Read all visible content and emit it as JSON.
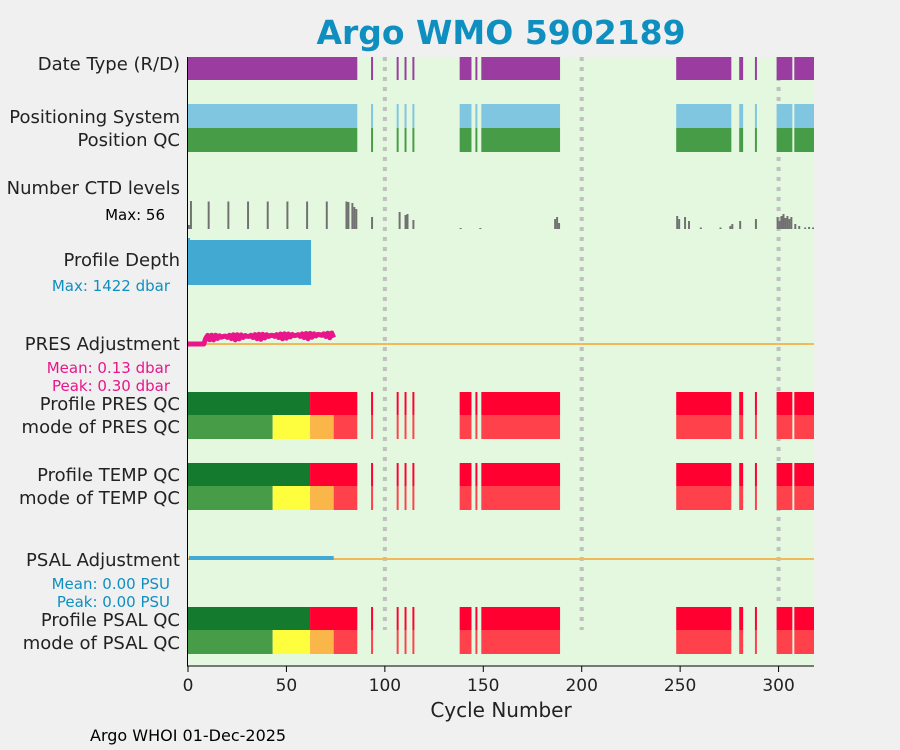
{
  "chart_data": {
    "type": "multi-panel status timeline",
    "title": "Argo WMO 5902189",
    "xlabel": "Cycle Number",
    "xlim": [
      0,
      318
    ],
    "xticks": [
      0,
      50,
      100,
      150,
      200,
      250,
      300
    ],
    "footer": "Argo WHOI 01-Dec-2025",
    "vlines": [
      100,
      200,
      300
    ],
    "colors": {
      "background": "#f0f0f0",
      "plot_bg": "#e3f8df",
      "title": "#0f8fc0",
      "purple": "#9a3ca0",
      "lightblue": "#80c6e0",
      "green": "#479c47",
      "darkgreen": "#137a2e",
      "gray": "#717171",
      "blue": "#42a9d2",
      "pink": "#e8168a",
      "orange": "#f2b85a",
      "red": "#ff0030",
      "lightred": "#ff414b",
      "yellow": "#fefe3e",
      "amber": "#fbb64a"
    },
    "present_cycle_ranges": [
      [
        0,
        86
      ],
      [
        93,
        94
      ],
      [
        106,
        107
      ],
      [
        110,
        111
      ],
      [
        114,
        115
      ],
      [
        138,
        144
      ],
      [
        146,
        147
      ],
      [
        149,
        189
      ],
      [
        248,
        276
      ],
      [
        280,
        282
      ],
      [
        288,
        289
      ],
      [
        299,
        307
      ],
      [
        308,
        318
      ]
    ],
    "rows": {
      "data_type": {
        "label": "Date Type (R/D)"
      },
      "positioning_system": {
        "label": "Positioning System"
      },
      "position_qc": {
        "label": "Position QC"
      },
      "ctd_levels": {
        "label": "Number CTD levels",
        "max_label": "Max: 56",
        "max": 56,
        "values": [
          [
            0,
            8
          ],
          [
            1,
            56
          ],
          [
            10,
            55
          ],
          [
            20,
            55
          ],
          [
            30,
            55
          ],
          [
            40,
            55
          ],
          [
            50,
            55
          ],
          [
            60,
            55
          ],
          [
            70,
            55
          ],
          [
            80,
            55
          ],
          [
            81,
            54
          ],
          [
            83,
            52
          ],
          [
            84,
            44
          ],
          [
            85,
            40
          ],
          [
            93,
            24
          ],
          [
            107,
            34
          ],
          [
            110,
            28
          ],
          [
            111,
            30
          ],
          [
            114,
            18
          ],
          [
            138,
            2
          ],
          [
            148,
            2
          ],
          [
            186,
            20
          ],
          [
            187,
            24
          ],
          [
            188,
            12
          ],
          [
            248,
            26
          ],
          [
            249,
            20
          ],
          [
            252,
            24
          ],
          [
            254,
            16
          ],
          [
            260,
            3
          ],
          [
            270,
            3
          ],
          [
            275,
            6
          ],
          [
            276,
            10
          ],
          [
            280,
            16
          ],
          [
            288,
            20
          ],
          [
            299,
            24
          ],
          [
            300,
            16
          ],
          [
            301,
            26
          ],
          [
            302,
            30
          ],
          [
            303,
            22
          ],
          [
            304,
            26
          ],
          [
            305,
            20
          ],
          [
            306,
            24
          ],
          [
            308,
            10
          ],
          [
            310,
            6
          ],
          [
            313,
            3
          ],
          [
            315,
            4
          ],
          [
            317,
            3
          ]
        ]
      },
      "profile_depth": {
        "label": "Profile Depth",
        "max_label": "Max: 1422 dbar",
        "max": 1422,
        "range": [
          0,
          62
        ],
        "value": 1422
      },
      "pres_adjustment": {
        "label": "PRES Adjustment",
        "mean_label": "Mean: 0.13 dbar",
        "peak_label": "Peak: 0.30 dbar",
        "range": [
          0,
          74
        ],
        "zero_line_color": "#f2b85a"
      },
      "psal_adjustment": {
        "label": "PSAL Adjustment",
        "mean_label": "Mean: 0.00 PSU",
        "peak_label": "Peak: 0.00 PSU",
        "range": [
          0,
          74
        ],
        "zero_line_color": "#f2b85a"
      },
      "profile_pres_qc": {
        "label": "Profile PRES QC"
      },
      "mode_pres_qc": {
        "label": "mode of PRES QC"
      },
      "profile_temp_qc": {
        "label": "Profile TEMP QC"
      },
      "mode_temp_qc": {
        "label": "mode of TEMP QC"
      },
      "profile_psal_qc": {
        "label": "Profile PSAL QC"
      },
      "mode_psal_qc": {
        "label": "mode of PSAL QC"
      }
    },
    "profile_qc_segments": [
      {
        "from": 0,
        "to": 62,
        "grade": "A",
        "color": "#137a2e"
      },
      {
        "from": 62,
        "to": 318,
        "grade": "F",
        "color": "#ff0030"
      }
    ],
    "mode_qc_segments": [
      {
        "from": 0,
        "to": 43,
        "qc": 1,
        "color": "#479c47"
      },
      {
        "from": 43,
        "to": 62,
        "qc": 2,
        "color": "#fefe3e"
      },
      {
        "from": 62,
        "to": 74,
        "qc": 3,
        "color": "#fbb64a"
      },
      {
        "from": 74,
        "to": 318,
        "qc": 4,
        "color": "#ff414b"
      }
    ]
  }
}
